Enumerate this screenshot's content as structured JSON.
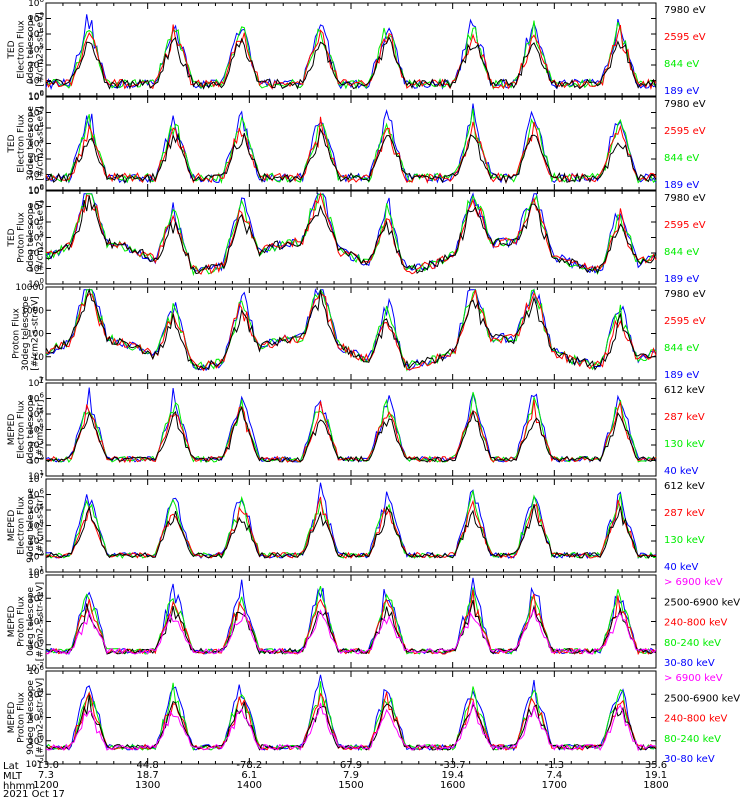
{
  "date_label": "2021 Oct 17",
  "footer": {
    "row_labels": [
      "Lat",
      "MLT",
      "hhmm"
    ],
    "lat": [
      "-13.0",
      "44.8",
      "-78.2",
      "67.9",
      "-33.7",
      "-1.3",
      "35.6"
    ],
    "mlt": [
      "7.3",
      "18.7",
      "6.1",
      "7.9",
      "19.4",
      "7.4",
      "19.1"
    ],
    "hhmm": [
      "1200",
      "1300",
      "1400",
      "1500",
      "1600",
      "1700",
      "1800"
    ]
  },
  "colors": {
    "black": "#000000",
    "red": "#ff0000",
    "green": "#00ee00",
    "blue": "#0000ff",
    "magenta": "#ff00ff"
  },
  "chart_data": [
    {
      "type": "line",
      "ylabel": [
        "TED",
        "Electron Flux",
        "0deg telescope",
        "[#/cm2-s-str-eV]"
      ],
      "scale": "log",
      "ylim": [
        1,
        1000000
      ],
      "ytick_labels": [
        "10^0",
        "10^1",
        "10^2",
        "10^3",
        "10^4",
        "10^5",
        "10^6"
      ],
      "xlim": [
        "1200",
        "1800"
      ],
      "series": [
        {
          "name": "7980 eV",
          "color": "black"
        },
        {
          "name": "2595 eV",
          "color": "red"
        },
        {
          "name": "844 eV",
          "color": "green"
        },
        {
          "name": "189 eV",
          "color": "blue"
        }
      ]
    },
    {
      "type": "line",
      "ylabel": [
        "TED",
        "Electron Flux",
        "30deg telescope",
        "[#/cm2-s-str-eV]"
      ],
      "scale": "log",
      "ylim": [
        1,
        1000000
      ],
      "ytick_labels": [
        "10^0",
        "10^1",
        "10^2",
        "10^3",
        "10^4",
        "10^5",
        "10^6"
      ],
      "xlim": [
        "1200",
        "1800"
      ],
      "series": [
        {
          "name": "7980 eV",
          "color": "black"
        },
        {
          "name": "2595 eV",
          "color": "red"
        },
        {
          "name": "844 eV",
          "color": "green"
        },
        {
          "name": "189 eV",
          "color": "blue"
        }
      ]
    },
    {
      "type": "line",
      "ylabel": [
        "TED",
        "Proton Flux",
        "0deg telescope",
        "[#/cm2-s-str-eV]"
      ],
      "scale": "log",
      "ylim": [
        1,
        1000000
      ],
      "ytick_labels": [
        "10^0",
        "10^1",
        "10^2",
        "10^3",
        "10^4",
        "10^5",
        "10^6"
      ],
      "xlim": [
        "1200",
        "1800"
      ],
      "series": [
        {
          "name": "7980 eV",
          "color": "black"
        },
        {
          "name": "2595 eV",
          "color": "red"
        },
        {
          "name": "844 eV",
          "color": "green"
        },
        {
          "name": "189 eV",
          "color": "blue"
        }
      ]
    },
    {
      "type": "line",
      "ylabel": [
        "Proton Flux",
        "30deg telescope",
        "[#/cm2-s-str-eV]"
      ],
      "scale": "log",
      "ylim": [
        1,
        10000
      ],
      "ytick_labels": [
        "1",
        "10",
        "100",
        "1000",
        "10000"
      ],
      "xlim": [
        "1200",
        "1800"
      ],
      "series": [
        {
          "name": "7980 eV",
          "color": "black"
        },
        {
          "name": "2595 eV",
          "color": "red"
        },
        {
          "name": "844 eV",
          "color": "green"
        },
        {
          "name": "189 eV",
          "color": "blue"
        }
      ]
    },
    {
      "type": "line",
      "ylabel": [
        "MEPED",
        "Electron Flux",
        "0deg telescope",
        "[#/cm2-s-str]"
      ],
      "scale": "log",
      "ylim": [
        10,
        10000000
      ],
      "ytick_labels": [
        "10^1",
        "10^2",
        "10^3",
        "10^4",
        "10^5",
        "10^6",
        "10^7"
      ],
      "xlim": [
        "1200",
        "1800"
      ],
      "series": [
        {
          "name": "612 keV",
          "color": "black"
        },
        {
          "name": "287 keV",
          "color": "red"
        },
        {
          "name": "130 keV",
          "color": "green"
        },
        {
          "name": "40 keV",
          "color": "blue"
        }
      ]
    },
    {
      "type": "line",
      "ylabel": [
        "MEPED",
        "Electron Flux",
        "90deg telescope",
        "[#/cm2-s-str]"
      ],
      "scale": "log",
      "ylim": [
        10,
        10000000
      ],
      "ytick_labels": [
        "10^1",
        "10^2",
        "10^3",
        "10^4",
        "10^5",
        "10^6",
        "10^7"
      ],
      "xlim": [
        "1200",
        "1800"
      ],
      "series": [
        {
          "name": "612 keV",
          "color": "black"
        },
        {
          "name": "287 keV",
          "color": "red"
        },
        {
          "name": "130 keV",
          "color": "green"
        },
        {
          "name": "40 keV",
          "color": "blue"
        }
      ]
    },
    {
      "type": "line",
      "ylabel": [
        "MEPED",
        "Proton Flux",
        "0deg telescope",
        "[#/cm2-s-str-keV]"
      ],
      "scale": "log",
      "ylim": [
        0.01,
        1000000
      ],
      "ytick_labels": [
        "10^-2",
        "10^0",
        "10^2",
        "10^4",
        "10^6"
      ],
      "xlim": [
        "1200",
        "1800"
      ],
      "series": [
        {
          "name": "> 6900 keV",
          "color": "magenta"
        },
        {
          "name": "2500-6900 keV",
          "color": "black"
        },
        {
          "name": "240-800 keV",
          "color": "red"
        },
        {
          "name": "80-240 keV",
          "color": "green"
        },
        {
          "name": "30-80 keV",
          "color": "blue"
        }
      ]
    },
    {
      "type": "line",
      "ylabel": [
        "MEPED",
        "Proton Flux",
        "90deg telescope",
        "[#/cm2-s-str-keV]"
      ],
      "scale": "log",
      "ylim": [
        0.01,
        1000000
      ],
      "ytick_labels": [
        "10^-2",
        "10^0",
        "10^2",
        "10^4",
        "10^6"
      ],
      "xlim": [
        "1200",
        "1800"
      ],
      "series": [
        {
          "name": "> 6900 keV",
          "color": "magenta"
        },
        {
          "name": "2500-6900 keV",
          "color": "black"
        },
        {
          "name": "240-800 keV",
          "color": "red"
        },
        {
          "name": "80-240 keV",
          "color": "green"
        },
        {
          "name": "30-80 keV",
          "color": "blue"
        }
      ]
    }
  ]
}
